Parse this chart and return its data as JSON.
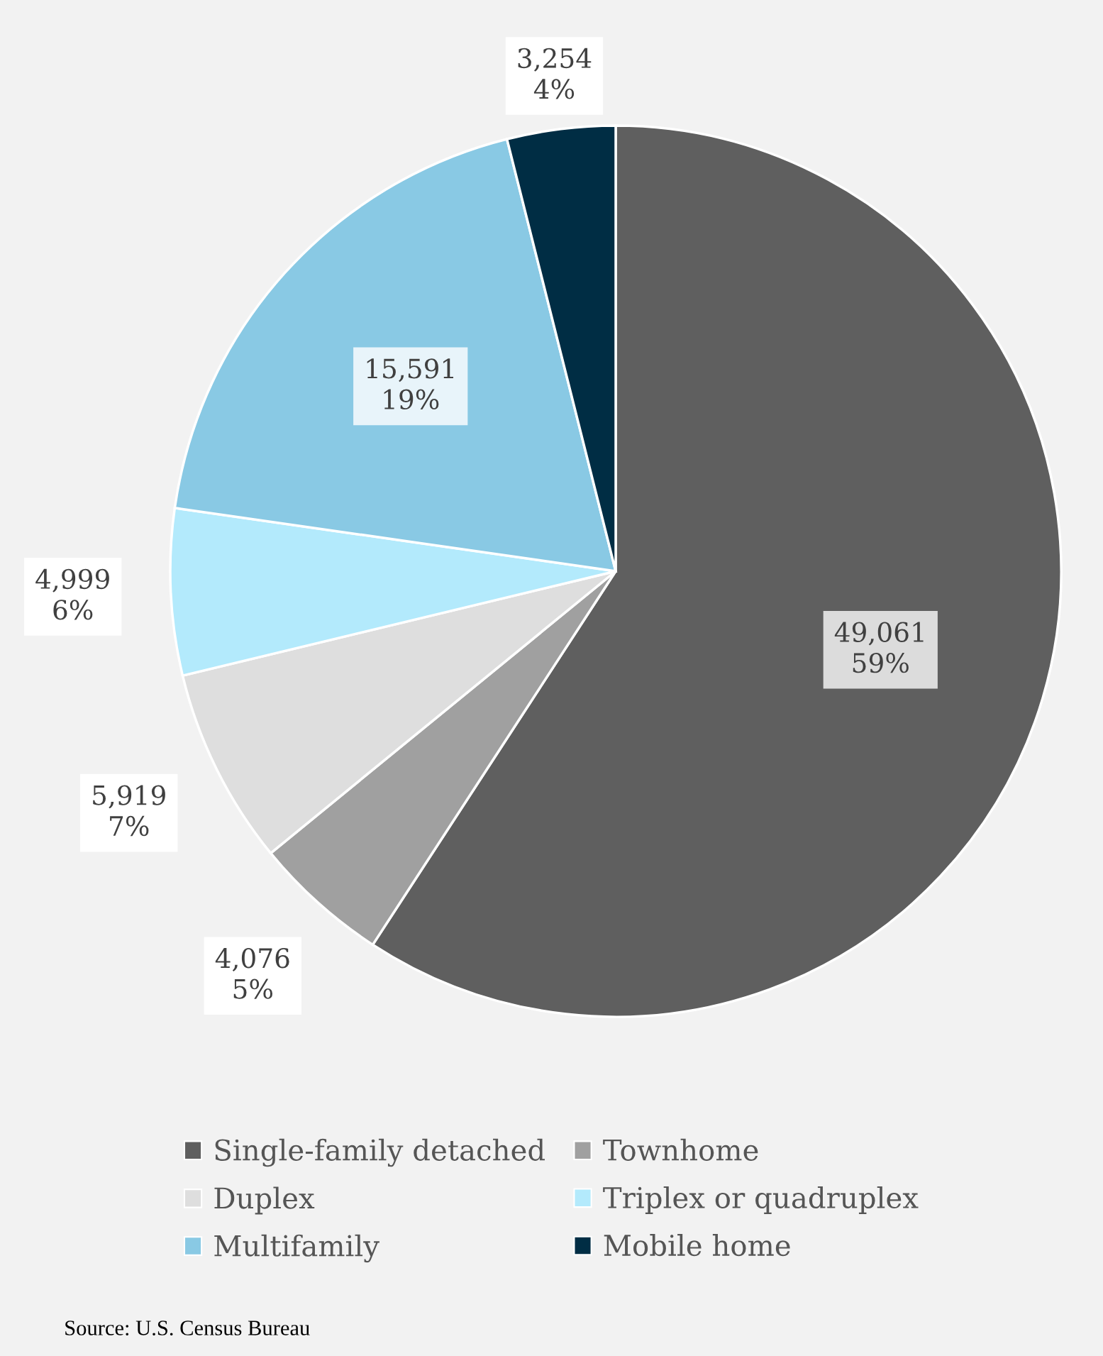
{
  "chart_data": {
    "type": "pie",
    "categories": [
      "Single-family detached",
      "Townhome",
      "Duplex",
      "Triplex or quadruplex",
      "Multifamily",
      "Mobile home"
    ],
    "values": [
      49061,
      4076,
      5919,
      4999,
      15591,
      3254
    ],
    "colors": [
      "#5f5f5f",
      "#a0a0a0",
      "#dedede",
      "#b3eafc",
      "#89c9e4",
      "#002d44"
    ],
    "value_labels": [
      "49,061\n59%",
      "4,076\n5%",
      "5,919\n7%",
      "4,999\n6%",
      "15,591\n19%",
      "3,254\n4%"
    ],
    "legend": "bottom",
    "annotations": [
      "Source: U.S. Census Bureau"
    ]
  }
}
